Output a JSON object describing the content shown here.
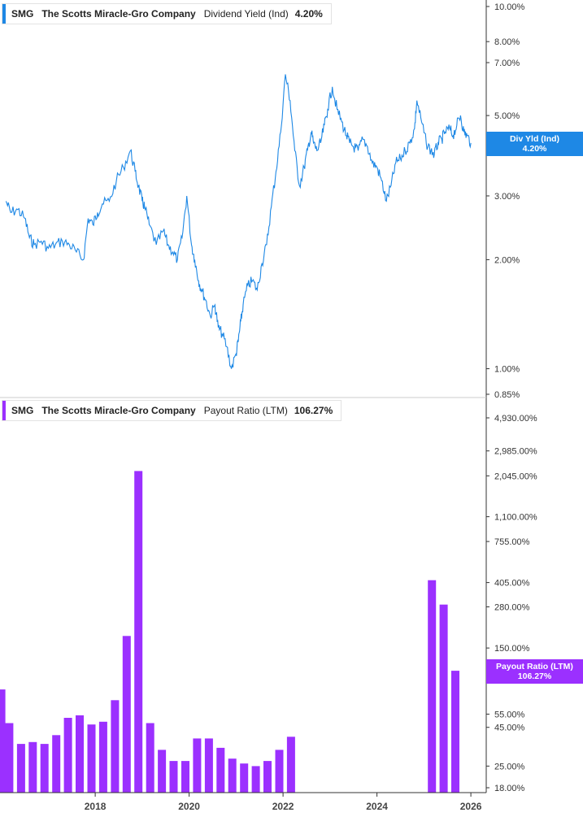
{
  "colors": {
    "yield": "#1e88e5",
    "payout": "#9b30ff",
    "axis": "#333333"
  },
  "top_legend": {
    "ticker": "SMG",
    "company": "The Scotts Miracle-Gro Company",
    "metric": "Dividend Yield (Ind)",
    "value": "4.20%"
  },
  "bottom_legend": {
    "ticker": "SMG",
    "company": "The Scotts Miracle-Gro Company",
    "metric": "Payout Ratio (LTM)",
    "value": "106.27%"
  },
  "top_flag": {
    "label": "Div Yld (Ind)",
    "value": "4.20%"
  },
  "bottom_flag": {
    "label": "Payout Ratio (LTM)",
    "value": "106.27%"
  },
  "chart_data": [
    {
      "type": "line",
      "scale": "log",
      "ylim": [
        0.85,
        10.2
      ],
      "y_ticks": [
        {
          "v": 10,
          "label": "10.00%"
        },
        {
          "v": 8,
          "label": "8.00%"
        },
        {
          "v": 7,
          "label": "7.00%"
        },
        {
          "v": 5,
          "label": "5.00%"
        },
        {
          "v": 3,
          "label": "3.00%"
        },
        {
          "v": 2,
          "label": "2.00%"
        },
        {
          "v": 1,
          "label": "1.00%"
        },
        {
          "v": 0.85,
          "label": "0.85%"
        }
      ],
      "series": [
        {
          "x": [
            2016.1,
            2016.2,
            2016.35,
            2016.5,
            2016.6,
            2016.7,
            2016.85,
            2017.0,
            2017.15,
            2017.3,
            2017.45,
            2017.6,
            2017.75,
            2017.85,
            2017.95,
            2018.05,
            2018.15,
            2018.3,
            2018.45,
            2018.6,
            2018.75,
            2018.85,
            2018.92,
            2019.0,
            2019.05,
            2019.15,
            2019.3,
            2019.45,
            2019.55,
            2019.65,
            2019.75,
            2019.85,
            2019.95,
            2020.05,
            2020.12,
            2020.2,
            2020.27,
            2020.35,
            2020.45,
            2020.55,
            2020.62,
            2020.7,
            2020.8,
            2020.9,
            2021.0,
            2021.05,
            2021.1,
            2021.15,
            2021.25,
            2021.35,
            2021.45,
            2021.55,
            2021.65,
            2021.75,
            2021.85,
            2021.95,
            2022.05,
            2022.15,
            2022.25,
            2022.35,
            2022.45,
            2022.52,
            2022.6,
            2022.65,
            2022.72,
            2022.8,
            2022.88,
            2022.95,
            2023.05,
            2023.15,
            2023.25,
            2023.35,
            2023.42,
            2023.5,
            2023.6,
            2023.7,
            2023.8,
            2023.9,
            2024.0,
            2024.1,
            2024.2,
            2024.3,
            2024.4,
            2024.5,
            2024.6,
            2024.7,
            2024.8,
            2024.85,
            2024.95,
            2025.05,
            2025.15,
            2025.22,
            2025.3,
            2025.38,
            2025.45,
            2025.55,
            2025.62,
            2025.7,
            2025.78,
            2025.85,
            2025.92,
            2026.0
          ],
          "y": [
            2.9,
            2.7,
            2.75,
            2.6,
            2.3,
            2.2,
            2.25,
            2.15,
            2.2,
            2.25,
            2.2,
            2.1,
            2.0,
            2.6,
            2.5,
            2.7,
            2.85,
            2.9,
            3.3,
            3.6,
            4.0,
            3.5,
            3.2,
            2.9,
            2.8,
            2.5,
            2.2,
            2.4,
            2.2,
            2.1,
            2.0,
            2.3,
            3.0,
            2.2,
            2.0,
            1.75,
            1.65,
            1.55,
            1.4,
            1.5,
            1.3,
            1.25,
            1.15,
            1.0,
            1.1,
            1.2,
            1.35,
            1.5,
            1.7,
            1.75,
            1.65,
            1.95,
            2.2,
            2.8,
            3.5,
            4.5,
            6.5,
            5.5,
            4.0,
            3.2,
            3.6,
            4.0,
            4.5,
            4.2,
            4.0,
            4.2,
            4.7,
            5.2,
            6.0,
            5.2,
            4.8,
            4.4,
            4.2,
            4.1,
            4.0,
            4.3,
            4.1,
            3.7,
            3.6,
            3.3,
            2.9,
            3.2,
            3.7,
            3.8,
            4.0,
            4.2,
            4.6,
            5.5,
            4.8,
            4.2,
            4.0,
            3.9,
            4.2,
            4.3,
            4.5,
            4.6,
            4.4,
            4.7,
            5.0,
            4.5,
            4.4,
            4.2
          ]
        }
      ]
    },
    {
      "type": "bar",
      "scale": "log",
      "ylim": [
        16.5,
        4930
      ],
      "y_ticks": [
        {
          "v": 4930,
          "label": "4,930.00%"
        },
        {
          "v": 2985,
          "label": "2,985.00%"
        },
        {
          "v": 2045,
          "label": "2,045.00%"
        },
        {
          "v": 1100,
          "label": "1,100.00%"
        },
        {
          "v": 755,
          "label": "755.00%"
        },
        {
          "v": 405,
          "label": "405.00%"
        },
        {
          "v": 280,
          "label": "280.00%"
        },
        {
          "v": 150,
          "label": "150.00%"
        },
        {
          "v": 55,
          "label": "55.00%"
        },
        {
          "v": 45,
          "label": "45.00%"
        },
        {
          "v": 25,
          "label": "25.00%"
        },
        {
          "v": 18,
          "label": "18.00%"
        }
      ],
      "series": [
        {
          "x": [
            2016.0,
            2016.17,
            2016.42,
            2016.67,
            2016.92,
            2017.17,
            2017.42,
            2017.67,
            2017.92,
            2018.17,
            2018.42,
            2018.67,
            2018.92,
            2019.17,
            2019.42,
            2019.67,
            2019.92,
            2020.17,
            2020.42,
            2020.67,
            2020.92,
            2021.17,
            2021.42,
            2021.67,
            2021.92,
            2022.17,
            2025.17,
            2025.42,
            2025.67
          ],
          "y": [
            80,
            48,
            35,
            36,
            35,
            40,
            52,
            54,
            47,
            49,
            68,
            180,
            2200,
            48,
            32,
            27,
            27,
            38,
            38,
            33,
            28,
            26,
            25,
            27,
            32,
            39,
            420,
            290,
            106.27
          ]
        }
      ]
    }
  ],
  "x_axis": {
    "ticks": [
      {
        "v": 2018,
        "label": "2018"
      },
      {
        "v": 2020,
        "label": "2020"
      },
      {
        "v": 2022,
        "label": "2022"
      },
      {
        "v": 2024,
        "label": "2024"
      },
      {
        "v": 2026,
        "label": "2026"
      }
    ]
  }
}
